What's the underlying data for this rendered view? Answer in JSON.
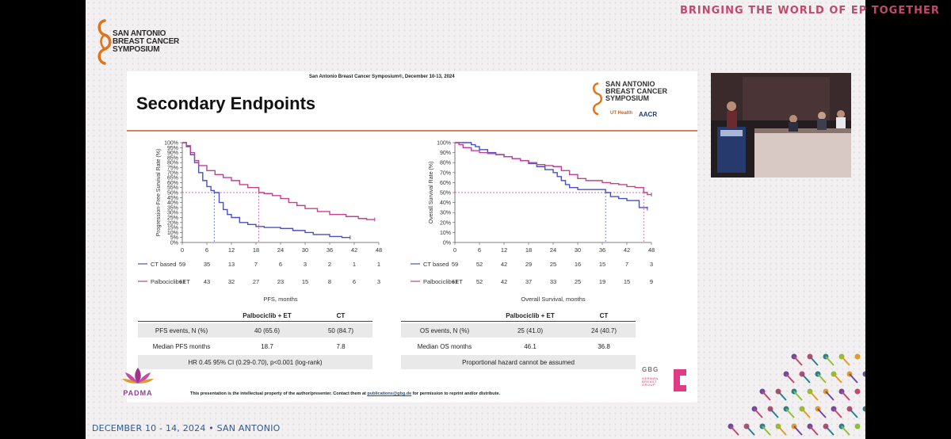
{
  "banner": {
    "logo_lines": [
      "SAN ANTONIO",
      "BREAST CANCER",
      "SYMPOSIUM"
    ],
    "tagline": "BRINGING THE WORLD OF EP TOGETHER",
    "footer_date": "DECEMBER 10 - 14, 2024 • SAN ANTONIO"
  },
  "slide": {
    "header": "San Antonio Breast Cancer Symposium®, December 10-13, 2024",
    "title": "Secondary Endpoints",
    "logo_lines": [
      "SAN ANTONIO",
      "BREAST CANCER",
      "SYMPOSIUM"
    ],
    "logo_ut": "UT Health",
    "logo_aacr": "AACR",
    "disclaimer_pre": "This presentation is the intellectual property of the author/presenter. Contact them at ",
    "disclaimer_link": "publications@gbg.de",
    "disclaimer_post": " for permission to reprint and/or distribute.",
    "gbg": "GBG",
    "gbg_sub": [
      "GERMAN",
      "BREAST",
      "GROUP"
    ],
    "padma": "PADMA"
  },
  "colors": {
    "ct": "#4a4fc4",
    "palbo": "#c2408f",
    "accent_rule": "#d4835a"
  },
  "pfs_table": {
    "headers": [
      "",
      "Palbociclib + ET",
      "CT"
    ],
    "rows": [
      [
        "PFS events, N (%)",
        "40 (65.6)",
        "50 (84.7)"
      ],
      [
        "Median PFS months",
        "18.7",
        "7.8"
      ]
    ],
    "footer": "HR 0.45 95% CI (0.29-0.70), p<0.001 (log-rank)"
  },
  "os_table": {
    "headers": [
      "",
      "Palbociclib + ET",
      "CT"
    ],
    "rows": [
      [
        "OS events, N (%)",
        "25 (41.0)",
        "24 (40.7)"
      ],
      [
        "Median OS months",
        "46.1",
        "36.8"
      ]
    ],
    "footer": "Proportional hazard cannot be assumed"
  },
  "chart_data": [
    {
      "type": "line",
      "ylabel": "Progression-Free Survival Rate (%)",
      "xlabel": "PFS, months",
      "xlim": [
        0,
        48
      ],
      "ylim": [
        0,
        100
      ],
      "xticks": [
        0,
        6,
        12,
        18,
        24,
        30,
        36,
        42,
        48
      ],
      "yticks": [
        0,
        5,
        10,
        15,
        20,
        25,
        30,
        35,
        40,
        45,
        50,
        55,
        60,
        65,
        70,
        75,
        80,
        85,
        90,
        95,
        100
      ],
      "median_line_y": 50,
      "series": [
        {
          "name": "CT based",
          "x": [
            0,
            1,
            2,
            3,
            4,
            5,
            6,
            7,
            7.8,
            9,
            10,
            11,
            12,
            14,
            16,
            18,
            20,
            24,
            27,
            30,
            32,
            36,
            39,
            41
          ],
          "y": [
            100,
            96,
            88,
            80,
            70,
            62,
            56,
            52,
            50,
            40,
            33,
            28,
            25,
            20,
            18,
            16,
            15,
            14,
            12,
            10,
            8,
            6,
            5,
            5
          ],
          "at_risk": [
            59,
            35,
            13,
            7,
            6,
            3,
            2,
            1,
            1
          ]
        },
        {
          "name": "Palbociclib+ET",
          "x": [
            0,
            1,
            2,
            3,
            4,
            6,
            8,
            10,
            12,
            14,
            16,
            18.7,
            20,
            22,
            24,
            26,
            28,
            30,
            33,
            36,
            38,
            40,
            43,
            45,
            47
          ],
          "y": [
            100,
            97,
            90,
            82,
            77,
            72,
            68,
            65,
            62,
            58,
            55,
            50,
            49,
            47,
            44,
            40,
            37,
            34,
            31,
            28,
            28,
            26,
            24,
            23,
            23
          ],
          "at_risk": [
            61,
            43,
            32,
            27,
            23,
            15,
            8,
            6,
            3
          ]
        }
      ],
      "median_x": [
        7.8,
        18.7
      ]
    },
    {
      "type": "line",
      "ylabel": "Overall Survival Rate (%)",
      "xlabel": "Overall Survival, months",
      "xlim": [
        0,
        48
      ],
      "ylim": [
        0,
        100
      ],
      "xticks": [
        0,
        6,
        12,
        18,
        24,
        30,
        36,
        42,
        48
      ],
      "yticks": [
        0,
        10,
        20,
        30,
        40,
        50,
        60,
        70,
        80,
        90,
        100
      ],
      "median_line_y": 50,
      "series": [
        {
          "name": "CT based",
          "x": [
            0,
            2,
            4,
            5,
            6,
            8,
            10,
            12,
            14,
            16,
            18,
            20,
            22,
            24,
            25,
            26,
            27,
            28,
            30,
            33,
            35,
            36.8,
            38,
            40,
            42,
            44,
            45,
            47
          ],
          "y": [
            100,
            100,
            98,
            96,
            93,
            90,
            88,
            86,
            84,
            82,
            79,
            76,
            73,
            70,
            66,
            62,
            58,
            55,
            53,
            53,
            53,
            50,
            46,
            44,
            42,
            42,
            35,
            34
          ],
          "at_risk": [
            59,
            52,
            42,
            29,
            25,
            16,
            15,
            7,
            3
          ]
        },
        {
          "name": "Palbociclib+ET",
          "x": [
            0,
            1,
            2,
            4,
            6,
            8,
            10,
            12,
            14,
            16,
            18,
            20,
            22,
            24,
            26,
            28,
            30,
            32,
            34,
            36,
            38,
            40,
            42,
            44,
            46.1,
            47,
            48
          ],
          "y": [
            100,
            98,
            95,
            92,
            90,
            89,
            88,
            86,
            84,
            82,
            80,
            78,
            77,
            76,
            72,
            68,
            64,
            62,
            62,
            60,
            59,
            58,
            56,
            55,
            50,
            48,
            48
          ],
          "at_risk": [
            61,
            52,
            42,
            37,
            33,
            25,
            19,
            15,
            9
          ]
        }
      ],
      "median_x": [
        36.8,
        46.1
      ]
    }
  ]
}
